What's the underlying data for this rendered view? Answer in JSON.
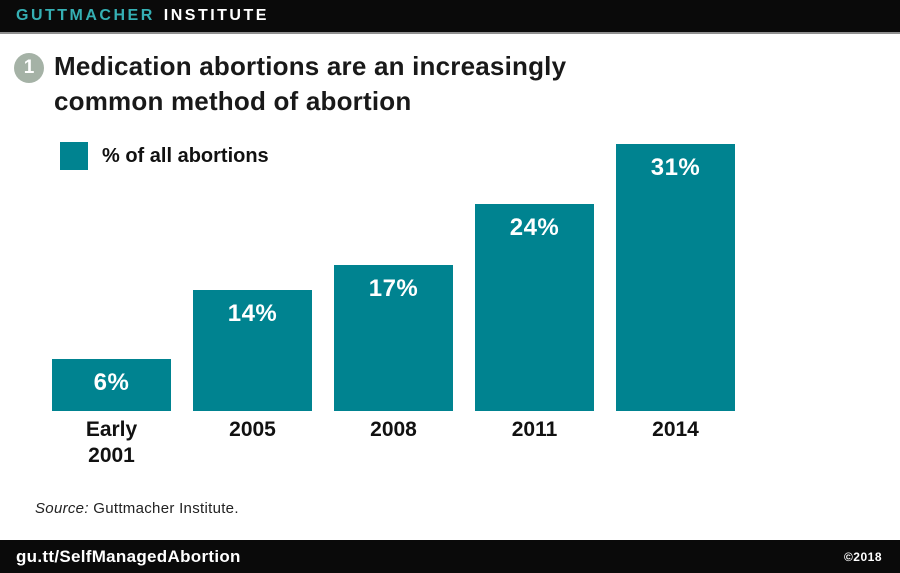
{
  "header": {
    "brand_primary": "GUTTMACHER",
    "brand_secondary": "INSTITUTE"
  },
  "figure": {
    "number": "1",
    "title": "Medication abortions are an increasingly common method of abortion"
  },
  "legend": {
    "label": "% of all abortions"
  },
  "chart_data": {
    "type": "bar",
    "categories": [
      "Early\n2001",
      "2005",
      "2008",
      "2011",
      "2014"
    ],
    "values": [
      6,
      14,
      17,
      24,
      31
    ],
    "value_labels": [
      "6%",
      "14%",
      "17%",
      "24%",
      "31%"
    ],
    "title": "Medication abortions are an increasingly common method of abortion",
    "xlabel": "",
    "ylabel": "% of all abortions",
    "ylim": [
      0,
      31
    ],
    "grid": false,
    "legend_position": "top-left",
    "bar_color": "#008390",
    "value_label_color": "#ffffff"
  },
  "source": {
    "prefix": "Source:",
    "text": " Guttmacher Institute."
  },
  "footer": {
    "left": "gu.tt/SelfManagedAbortion",
    "right": "©2018"
  },
  "colors": {
    "bar_teal": "#008390",
    "logo_teal": "#35b0b4",
    "figure_circle_green": "#a5b2a6",
    "header_bg": "#0a0a0a",
    "footer_bg": "#0a0a0a"
  }
}
